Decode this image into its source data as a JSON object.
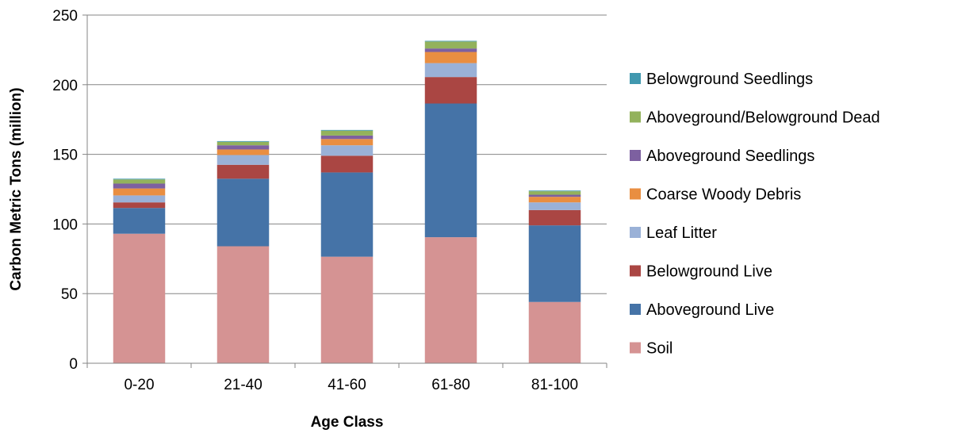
{
  "chart_data": {
    "type": "bar",
    "stacked": true,
    "title": "",
    "xlabel": "Age Class",
    "ylabel": "Carbon Metric Tons (million)",
    "ylim": [
      0,
      250
    ],
    "yticks": [
      0,
      50,
      100,
      150,
      200,
      250
    ],
    "grid": true,
    "legend_position": "right",
    "categories": [
      "0-20",
      "21-40",
      "41-60",
      "61-80",
      "81-100"
    ],
    "series": [
      {
        "name": "Soil",
        "color": "#D59393",
        "values": [
          93,
          84,
          76.5,
          90.5,
          44
        ]
      },
      {
        "name": "Aboveground Live",
        "color": "#4573A7",
        "values": [
          18.5,
          48.5,
          60.5,
          96,
          55
        ]
      },
      {
        "name": "Belowground Live",
        "color": "#AA4643",
        "values": [
          4,
          10,
          12,
          19,
          11
        ]
      },
      {
        "name": "Leaf Litter",
        "color": "#9AB1D7",
        "values": [
          5,
          7,
          7.5,
          10,
          5.5
        ]
      },
      {
        "name": "Coarse Woody Debris",
        "color": "#E98E41",
        "values": [
          5,
          4,
          4.5,
          8,
          4
        ]
      },
      {
        "name": "Aboveground Seedlings",
        "color": "#7D60A0",
        "values": [
          3.5,
          3,
          2.5,
          2.5,
          1.5
        ]
      },
      {
        "name": "Aboveground/Belowground Dead",
        "color": "#93B25C",
        "values": [
          3,
          2.5,
          3.5,
          5,
          2.5
        ]
      },
      {
        "name": "Belowground Seedlings",
        "color": "#4198AF",
        "values": [
          0.5,
          0.5,
          0.5,
          0.5,
          0.5
        ]
      }
    ]
  }
}
